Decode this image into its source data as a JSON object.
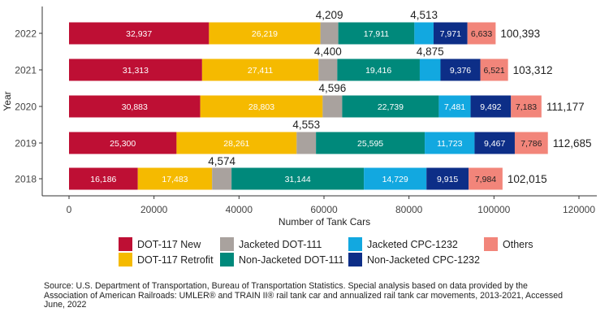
{
  "chart_data": {
    "type": "bar",
    "orientation": "horizontal",
    "stacked": true,
    "ylabel": "Year",
    "xlabel": "Number of Tank Cars",
    "xlim": [
      0,
      120000
    ],
    "xticks": [
      0,
      20000,
      40000,
      60000,
      80000,
      100000,
      120000
    ],
    "xtick_labels": [
      "0",
      "20000",
      "40000",
      "60000",
      "80000",
      "100000",
      "120000"
    ],
    "grid": false,
    "categories": [
      "2022",
      "2021",
      "2020",
      "2019",
      "2018"
    ],
    "series": [
      {
        "name": "DOT-117 New",
        "color": "#BE0F34",
        "values": [
          32937,
          31313,
          30883,
          25300,
          16186
        ],
        "labels": [
          "32,937",
          "31,313",
          "30,883",
          "25,300",
          "16,186"
        ]
      },
      {
        "name": "DOT-117 Retrofit",
        "color": "#F5BA00",
        "values": [
          26219,
          27411,
          28803,
          28261,
          17483
        ],
        "labels": [
          "26,219",
          "27,411",
          "28,803",
          "28,261",
          "17,483"
        ]
      },
      {
        "name": "Jacketed DOT-111",
        "color": "#A9A29E",
        "values": [
          4209,
          4400,
          4596,
          4553,
          4574
        ],
        "labels": [
          "4,209",
          "4,400",
          "4,596",
          "4,553",
          "4,574"
        ]
      },
      {
        "name": "Non-Jacketed DOT-111",
        "color": "#00897B",
        "values": [
          17911,
          19416,
          22739,
          25595,
          31144
        ],
        "labels": [
          "17,911",
          "19,416",
          "22,739",
          "25,595",
          "31,144"
        ]
      },
      {
        "name": "Jacketed CPC-1232",
        "color": "#12A8E0",
        "values": [
          4513,
          4875,
          7481,
          11723,
          14729
        ],
        "labels": [
          "4,513",
          "4,875",
          "7,481",
          "11,723",
          "14,729"
        ]
      },
      {
        "name": "Non-Jacketed CPC-1232",
        "color": "#0D2E87",
        "values": [
          7971,
          9376,
          9492,
          9467,
          9915
        ],
        "labels": [
          "7,971",
          "9,376",
          "9,492",
          "9,467",
          "9,915"
        ]
      },
      {
        "name": "Others",
        "color": "#F2857A",
        "values": [
          6633,
          6521,
          7183,
          7786,
          7984
        ],
        "labels": [
          "6,633",
          "6,521",
          "7,183",
          "7,786",
          "7,984"
        ]
      }
    ],
    "totals": [
      "100,393",
      "103,312",
      "111,177",
      "112,685",
      "102,015"
    ],
    "legend": [
      "DOT-117 New",
      "Jacketed DOT-111",
      "Jacketed CPC-1232",
      "Others",
      "DOT-117 Retrofit",
      "Non-Jacketed DOT-111",
      "Non-Jacketed CPC-1232"
    ]
  },
  "source_note": "Source: U.S. Department of Transportation, Bureau of Transportation Statistics. Special analysis based on data provided by the Association of American Railroads: UMLER® and TRAIN II® rail tank car and annualized rail tank car movements, 2013-2021, Accessed June, 2022"
}
